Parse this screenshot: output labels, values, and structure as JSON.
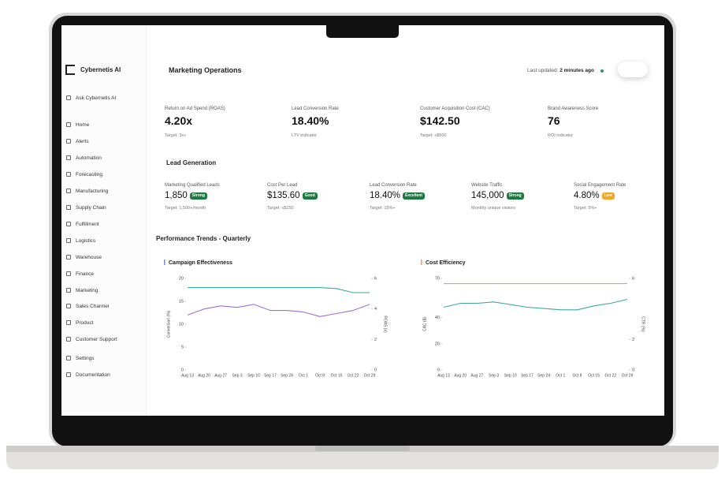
{
  "sidebar": {
    "brand": "Cybernetis AI",
    "ask": "Ask Cybernetis AI",
    "nav": [
      "Home",
      "Alerts",
      "Automation",
      "Forecasting",
      "Manufacturing",
      "Supply Chain",
      "Fulfillment",
      "Logistics",
      "Warehouse",
      "Finance",
      "Marketing",
      "Sales Channel",
      "Product",
      "Customer Support",
      "Settings",
      "Documentation"
    ]
  },
  "header": {
    "title": "Marketing Operations",
    "updated_label": "Last updated:",
    "updated_value": "2 minutes ago"
  },
  "kpis": [
    {
      "label": "Return on Ad Spend (ROAS)",
      "value": "4.20x",
      "note": "Target: 3x+"
    },
    {
      "label": "Lead Conversion Rate",
      "value": "18.40%",
      "note": "LTV indicator"
    },
    {
      "label": "Customer Acquisition Cost (CAC)",
      "value": "$142.50",
      "note": "Target: ≤$500"
    },
    {
      "label": "Brand Awareness Score",
      "value": "76",
      "note": "ROI indicator"
    }
  ],
  "lead_generation": {
    "title": "Lead Generation",
    "cards": [
      {
        "label": "Marketing Qualified Leads",
        "value": "1,850",
        "badge": "Strong",
        "note": "Target: 1,500+/month"
      },
      {
        "label": "Cost Per Lead",
        "value": "$135.60",
        "badge": "Good",
        "note": "Target: ≤$150"
      },
      {
        "label": "Lead Conversion Rate",
        "value": "18.40%",
        "badge": "Excellent",
        "note": "Target: 15%+"
      },
      {
        "label": "Website Traffic",
        "value": "145,000",
        "badge": "Strong",
        "note": "Monthly unique visitors"
      },
      {
        "label": "Social Engagement Rate",
        "value": "4.80%",
        "badge": "Low",
        "note": "Target: 5%+"
      }
    ]
  },
  "trends_title": "Performance Trends - Quarterly",
  "chart_data": [
    {
      "type": "line",
      "title": "Campaign Effectiveness",
      "ylabel": "Conversion (%)",
      "y2label": "ROAS (x)",
      "categories": [
        "Aug 13",
        "Aug 20",
        "Aug 27",
        "Sep 3",
        "Sep 10",
        "Sep 17",
        "Sep 24",
        "Oct 1",
        "Oct 8",
        "Oct 15",
        "Oct 22",
        "Oct 29"
      ],
      "ylim": [
        0,
        20
      ],
      "yticks": [
        0,
        5,
        10,
        15,
        20
      ],
      "y2lim": [
        0,
        6
      ],
      "y2ticks": [
        0,
        2,
        4,
        6
      ],
      "series": [
        {
          "color": "#3aa9a5",
          "values": [
            18,
            18,
            18,
            18,
            18,
            18,
            18,
            18,
            18,
            17.8,
            16.9,
            16.9
          ]
        },
        {
          "color": "#a06fd6",
          "axis": "y2",
          "values": [
            3.6,
            4.0,
            4.2,
            4.1,
            4.3,
            3.9,
            3.9,
            3.8,
            3.5,
            3.7,
            3.9,
            4.3
          ]
        }
      ]
    },
    {
      "type": "line",
      "title": "Cost Efficiency",
      "ylabel": "CAC ($)",
      "y2label": "CTR (%)",
      "categories": [
        "Aug 13",
        "Aug 20",
        "Aug 27",
        "Sep 3",
        "Sep 10",
        "Sep 17",
        "Sep 24",
        "Oct 1",
        "Oct 8",
        "Oct 15",
        "Oct 22",
        "Oct 29"
      ],
      "ylim": [
        0,
        70
      ],
      "yticks": [
        0,
        20,
        40,
        70
      ],
      "y2lim": [
        0,
        6
      ],
      "y2ticks": [
        0,
        2,
        6
      ],
      "series": [
        {
          "color": "#e0a070",
          "values": [
            66,
            66,
            66,
            66,
            66,
            66,
            66,
            66,
            66,
            66,
            66,
            66
          ]
        },
        {
          "color": "#3aa9a5",
          "values": [
            48,
            51,
            51,
            52,
            50,
            48,
            47,
            46,
            46,
            49,
            51,
            54
          ]
        }
      ]
    }
  ]
}
